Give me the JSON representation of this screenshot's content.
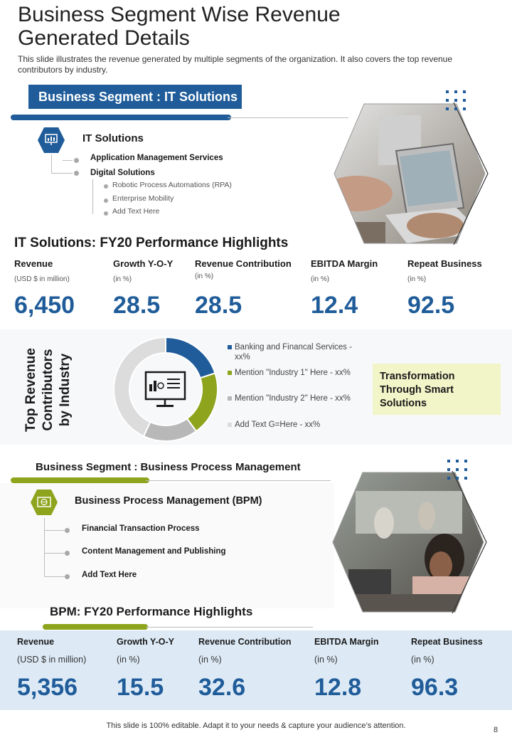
{
  "header": {
    "title": "Business Segment Wise Revenue Generated Details",
    "subtitle": "This slide illustrates the revenue generated by multiple segments of the organization. It also covers the top revenue contributors by industry."
  },
  "it_segment": {
    "banner": "Business Segment : IT Solutions",
    "heading": "IT Solutions",
    "items": [
      "Application Management Services",
      "Digital Solutions"
    ],
    "sub_items": [
      "Robotic Process Automations (RPA)",
      "Enterprise Mobility",
      "Add Text Here"
    ],
    "highlights_title": "IT Solutions:  FY20 Performance  Highlights",
    "kpis": [
      {
        "label": "Revenue",
        "unit": "(USD $ in million)",
        "value": "6,450"
      },
      {
        "label": "Growth Y-O-Y",
        "unit": "(in %)",
        "value": "28.5"
      },
      {
        "label": "Revenue Contribution",
        "unit": "(in %)",
        "value": "28.5"
      },
      {
        "label": "EBITDA  Margin",
        "unit": "(in %)",
        "value": "12.4"
      },
      {
        "label": "Repeat Business",
        "unit": "(in %)",
        "value": "92.5"
      }
    ]
  },
  "contributors": {
    "title_line1": "Top Revenue",
    "title_line2": "Contributors",
    "title_line3": "by Industry",
    "legend": [
      {
        "text": "Banking and Financal Services -",
        "text2": "xx%",
        "color": "#1f5c99"
      },
      {
        "text": "Mention \"Industry 1\" Here - xx%",
        "color": "#8ea41c"
      },
      {
        "text": "Mention \"Industry 2\" Here - xx%",
        "color": "#b8b8b8"
      },
      {
        "text": "Add Text G=Here - xx%",
        "color": "#dcdcdc"
      }
    ],
    "callout": "Transformation Through Smart Solutions"
  },
  "chart_data": {
    "type": "pie",
    "categories": [
      "Banking and Financal Services",
      "Industry 1",
      "Industry 2",
      "Add Text"
    ],
    "values": [
      20,
      20,
      17,
      43
    ],
    "colors": [
      "#1f5c99",
      "#8ea41c",
      "#b8b8b8",
      "#dcdcdc"
    ]
  },
  "bpm_segment": {
    "banner": "Business Segment : Business  Process  Management",
    "heading": "Business  Process  Management (BPM)",
    "items": [
      "Financial Transaction Process",
      "Content Management and Publishing",
      "Add  Text Here"
    ],
    "highlights_title": "BPM: FY20 Performance Highlights",
    "kpis": [
      {
        "label": "Revenue",
        "unit": "(USD $ in million)",
        "value": "5,356"
      },
      {
        "label": "Growth Y-O-Y",
        "unit": "(in %)",
        "value": "15.5"
      },
      {
        "label": "Revenue Contribution",
        "unit": "(in %)",
        "value": "32.6"
      },
      {
        "label": "EBITDA Margin",
        "unit": "(in %)",
        "value": "12.8"
      },
      {
        "label": "Repeat Business",
        "unit": "(in %)",
        "value": "96.3"
      }
    ]
  },
  "footer": {
    "note": "This slide is 100% editable. Adapt it to your needs & capture your audience’s attention.",
    "page": "8"
  }
}
